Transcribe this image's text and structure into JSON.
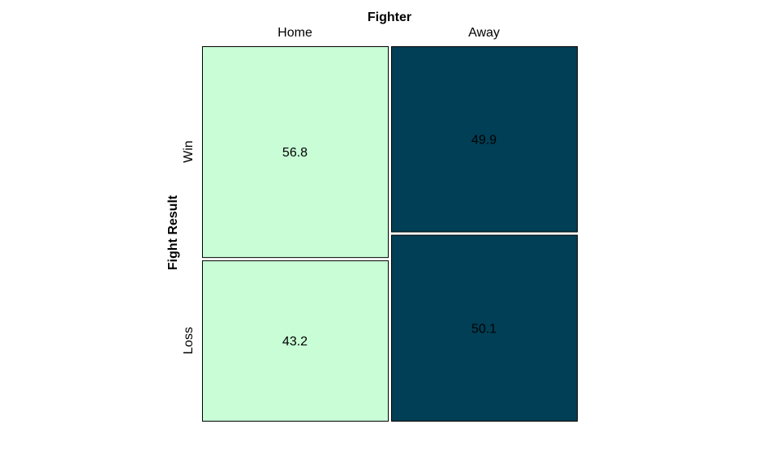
{
  "chart_data": {
    "type": "mosaic",
    "x_title": "Fighter",
    "y_title": "Fight Result",
    "columns": [
      "Home",
      "Away"
    ],
    "rows": [
      "Win",
      "Loss"
    ],
    "values": [
      {
        "column": "Home",
        "row": "Win",
        "value": 56.8,
        "label": "56.8"
      },
      {
        "column": "Home",
        "row": "Loss",
        "value": 43.2,
        "label": "43.2"
      },
      {
        "column": "Away",
        "row": "Win",
        "value": 49.9,
        "label": "49.9"
      },
      {
        "column": "Away",
        "row": "Loss",
        "value": 50.1,
        "label": "50.1"
      }
    ],
    "column_colors": {
      "Home": "#c8fdd6",
      "Away": "#003f55"
    },
    "text_color": "#000000"
  }
}
